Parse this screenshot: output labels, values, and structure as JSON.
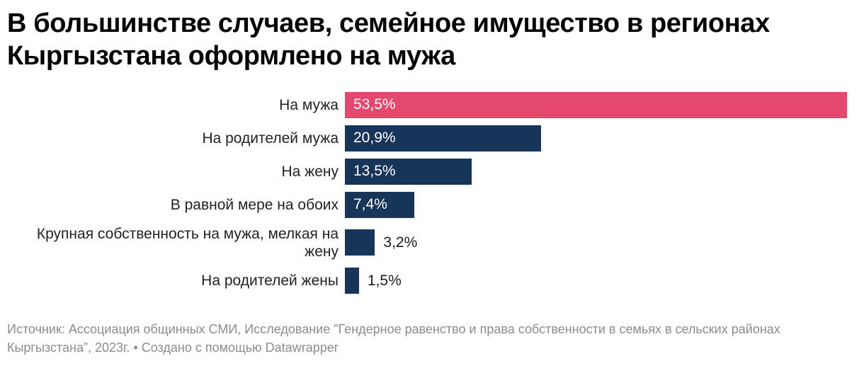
{
  "header": {
    "title": "В большинстве случаев, семейное имущество в регионах Кыргызстана оформлено на мужа",
    "title_lines": [
      "В большинстве случаев, семейное имущество в регионах",
      "Кыргызстана оформлено на мужа"
    ]
  },
  "chart_data": {
    "type": "bar",
    "orientation": "horizontal",
    "title": "В большинстве случаев, семейное имущество в регионах Кыргызстана оформлено на мужа",
    "categories": [
      "На мужа",
      "На родителей мужа",
      "На жену",
      "В равной мере на обоих",
      "Крупная собственность на мужа, мелкая на жену",
      "На родителей жены"
    ],
    "values": [
      53.5,
      20.9,
      13.5,
      7.4,
      3.2,
      1.5
    ],
    "value_labels": [
      "53,5%",
      "20,9%",
      "13,5%",
      "7,4%",
      "3,2%",
      "1,5%"
    ],
    "xlim": [
      0,
      53.5
    ],
    "grid": false,
    "legend": false,
    "highlight_index": 0,
    "highlight_color": "#e4486e",
    "base_color": "#173459",
    "value_label_inside_color": "#ffffff",
    "value_label_outside_color": "#1a1a1a"
  },
  "footer": {
    "source": "Источник: Ассоциация общинных СМИ, Исследование \"Гендерное равенство и права собственности в семьях в сельских районах Кыргызстана”, 2023г. • Создано с помощью Datawrapper"
  }
}
